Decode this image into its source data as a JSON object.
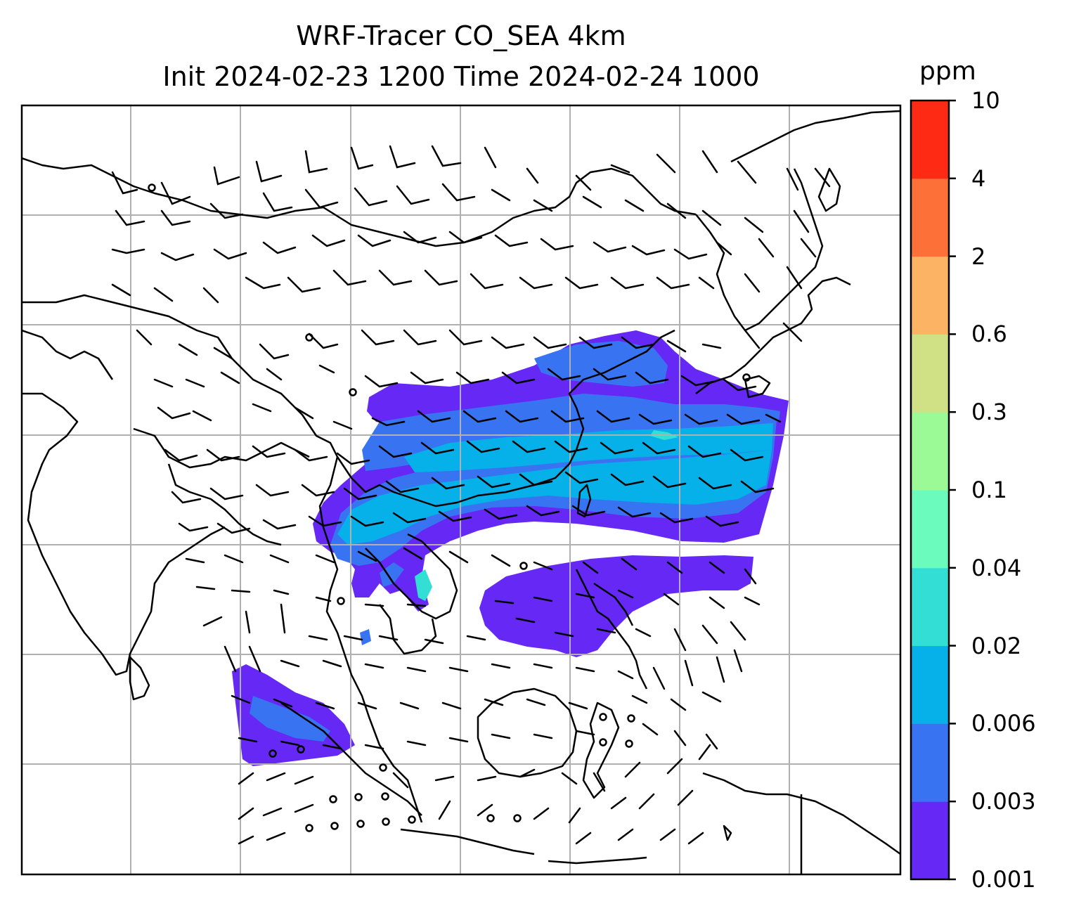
{
  "title_line1": "WRF-Tracer CO_SEA 4km",
  "title_line2": "Init 2024-02-23 1200 Time 2024-02-24 1000",
  "colorbar": {
    "unit": "ppm",
    "ticks": [
      "0.001",
      "0.003",
      "0.006",
      "0.02",
      "0.04",
      "0.1",
      "0.3",
      "0.6",
      "2",
      "4",
      "10"
    ],
    "colors": [
      "#6528f5",
      "#3874f2",
      "#06b0e8",
      "#33dfd4",
      "#6bfcbd",
      "#9cfa96",
      "#cfe085",
      "#fcb464",
      "#fd7038",
      "#ff2a14"
    ]
  },
  "map": {
    "grid": "on",
    "wind_barbs": "black",
    "coastlines": "black"
  }
}
